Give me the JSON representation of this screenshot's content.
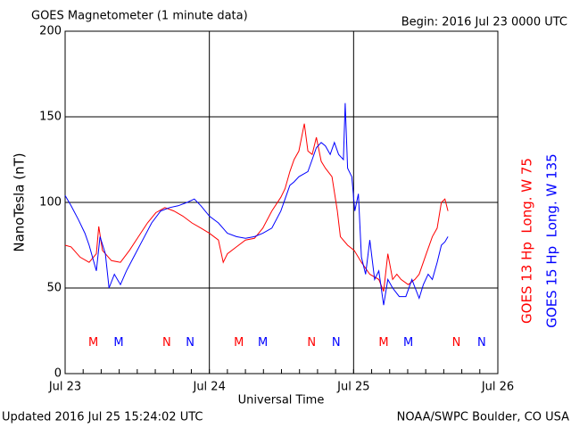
{
  "chart_data": {
    "type": "line",
    "title": "GOES Magnetometer (1 minute data)",
    "subtitle": "Begin:  2016 Jul 23 0000 UTC",
    "ylabel": "NanoTesla (nT)",
    "xlabel": "Universal Time",
    "footer_left": "Updated 2016 Jul 25 15:24:02 UTC",
    "footer_right": "NOAA/SWPC Boulder, CO USA",
    "xlim": [
      0,
      72
    ],
    "xticks": [
      {
        "value": 0,
        "label": "Jul 23"
      },
      {
        "value": 24,
        "label": "Jul 24"
      },
      {
        "value": 48,
        "label": "Jul 25"
      },
      {
        "value": 72,
        "label": "Jul 26"
      }
    ],
    "ylim": [
      0,
      200
    ],
    "yticks": [
      0,
      50,
      100,
      150,
      200
    ],
    "grid": true,
    "series": [
      {
        "name": "GOES 13 Hp  Long. W 75",
        "color": "#ff0000",
        "x": [
          0,
          1.0,
          2.5,
          4.0,
          5.2,
          5.6,
          6.2,
          7.7,
          9.2,
          10.7,
          12.2,
          13.7,
          15.1,
          16.6,
          18.1,
          19.6,
          21.1,
          22.6,
          24.0,
          25.5,
          26.3,
          27.0,
          28.5,
          30.0,
          31.5,
          32.9,
          34.4,
          35.9,
          36.6,
          37.4,
          38.1,
          38.9,
          39.8,
          40.4,
          41.1,
          41.8,
          42.6,
          43.3,
          44.4,
          45.3,
          45.8,
          47.0,
          48.1,
          49.3,
          50.7,
          52.2,
          53.0,
          53.7,
          54.5,
          55.2,
          55.9,
          57.1,
          58.2,
          58.9,
          60.1,
          61.1,
          61.9,
          62.6,
          63.2,
          63.7
        ],
        "values": [
          75,
          74,
          68,
          65,
          70,
          86,
          72,
          66,
          65,
          72,
          80,
          88,
          94,
          97,
          95,
          92,
          88,
          85,
          82,
          78,
          65,
          70,
          74,
          78,
          79,
          85,
          95,
          103,
          108,
          118,
          125,
          130,
          146,
          130,
          128,
          138,
          124,
          120,
          115,
          95,
          80,
          75,
          72,
          65,
          58,
          55,
          48,
          70,
          55,
          58,
          55,
          52,
          55,
          58,
          70,
          80,
          85,
          100,
          102,
          95
        ]
      },
      {
        "name": "GOES 15 Hp  Long. W 135",
        "color": "#0000ff",
        "x": [
          0,
          1.0,
          2.2,
          3.3,
          4.0,
          5.2,
          5.8,
          6.7,
          7.3,
          8.2,
          9.2,
          10.2,
          11.4,
          12.9,
          14.4,
          15.9,
          17.4,
          18.8,
          20.3,
          21.5,
          22.6,
          24.0,
          25.5,
          27.0,
          28.5,
          30.0,
          31.5,
          32.9,
          34.4,
          35.9,
          36.6,
          37.4,
          38.1,
          38.9,
          40.4,
          41.1,
          41.8,
          42.6,
          43.3,
          44.1,
          44.8,
          45.5,
          46.3,
          46.6,
          47.0,
          47.7,
          48.2,
          48.8,
          49.3,
          50.0,
          50.7,
          51.5,
          52.2,
          53.0,
          53.7,
          54.5,
          55.6,
          56.7,
          57.7,
          58.9,
          59.6,
          60.4,
          61.1,
          61.9,
          62.6,
          63.2,
          63.7
        ],
        "values": [
          104,
          98,
          90,
          82,
          75,
          60,
          80,
          70,
          50,
          58,
          52,
          60,
          68,
          78,
          88,
          95,
          97,
          98,
          100,
          102,
          98,
          92,
          88,
          82,
          80,
          79,
          80,
          82,
          85,
          95,
          102,
          110,
          112,
          115,
          118,
          125,
          132,
          135,
          133,
          128,
          135,
          128,
          125,
          158,
          120,
          115,
          95,
          105,
          68,
          58,
          78,
          55,
          60,
          40,
          55,
          50,
          45,
          45,
          55,
          44,
          52,
          58,
          55,
          65,
          75,
          77,
          80
        ]
      }
    ],
    "annotations": [
      {
        "text": "M",
        "x": 4.7,
        "y": 18,
        "color": "#ff0000"
      },
      {
        "text": "M",
        "x": 8.9,
        "y": 18,
        "color": "#0000ff"
      },
      {
        "text": "N",
        "x": 16.9,
        "y": 18,
        "color": "#ff0000"
      },
      {
        "text": "N",
        "x": 20.8,
        "y": 18,
        "color": "#0000ff"
      },
      {
        "text": "M",
        "x": 28.9,
        "y": 18,
        "color": "#ff0000"
      },
      {
        "text": "M",
        "x": 32.9,
        "y": 18,
        "color": "#0000ff"
      },
      {
        "text": "N",
        "x": 41.0,
        "y": 18,
        "color": "#ff0000"
      },
      {
        "text": "N",
        "x": 45.1,
        "y": 18,
        "color": "#0000ff"
      },
      {
        "text": "M",
        "x": 53.0,
        "y": 18,
        "color": "#ff0000"
      },
      {
        "text": "M",
        "x": 57.1,
        "y": 18,
        "color": "#0000ff"
      },
      {
        "text": "N",
        "x": 65.1,
        "y": 18,
        "color": "#ff0000"
      },
      {
        "text": "N",
        "x": 69.3,
        "y": 18,
        "color": "#0000ff"
      }
    ]
  }
}
